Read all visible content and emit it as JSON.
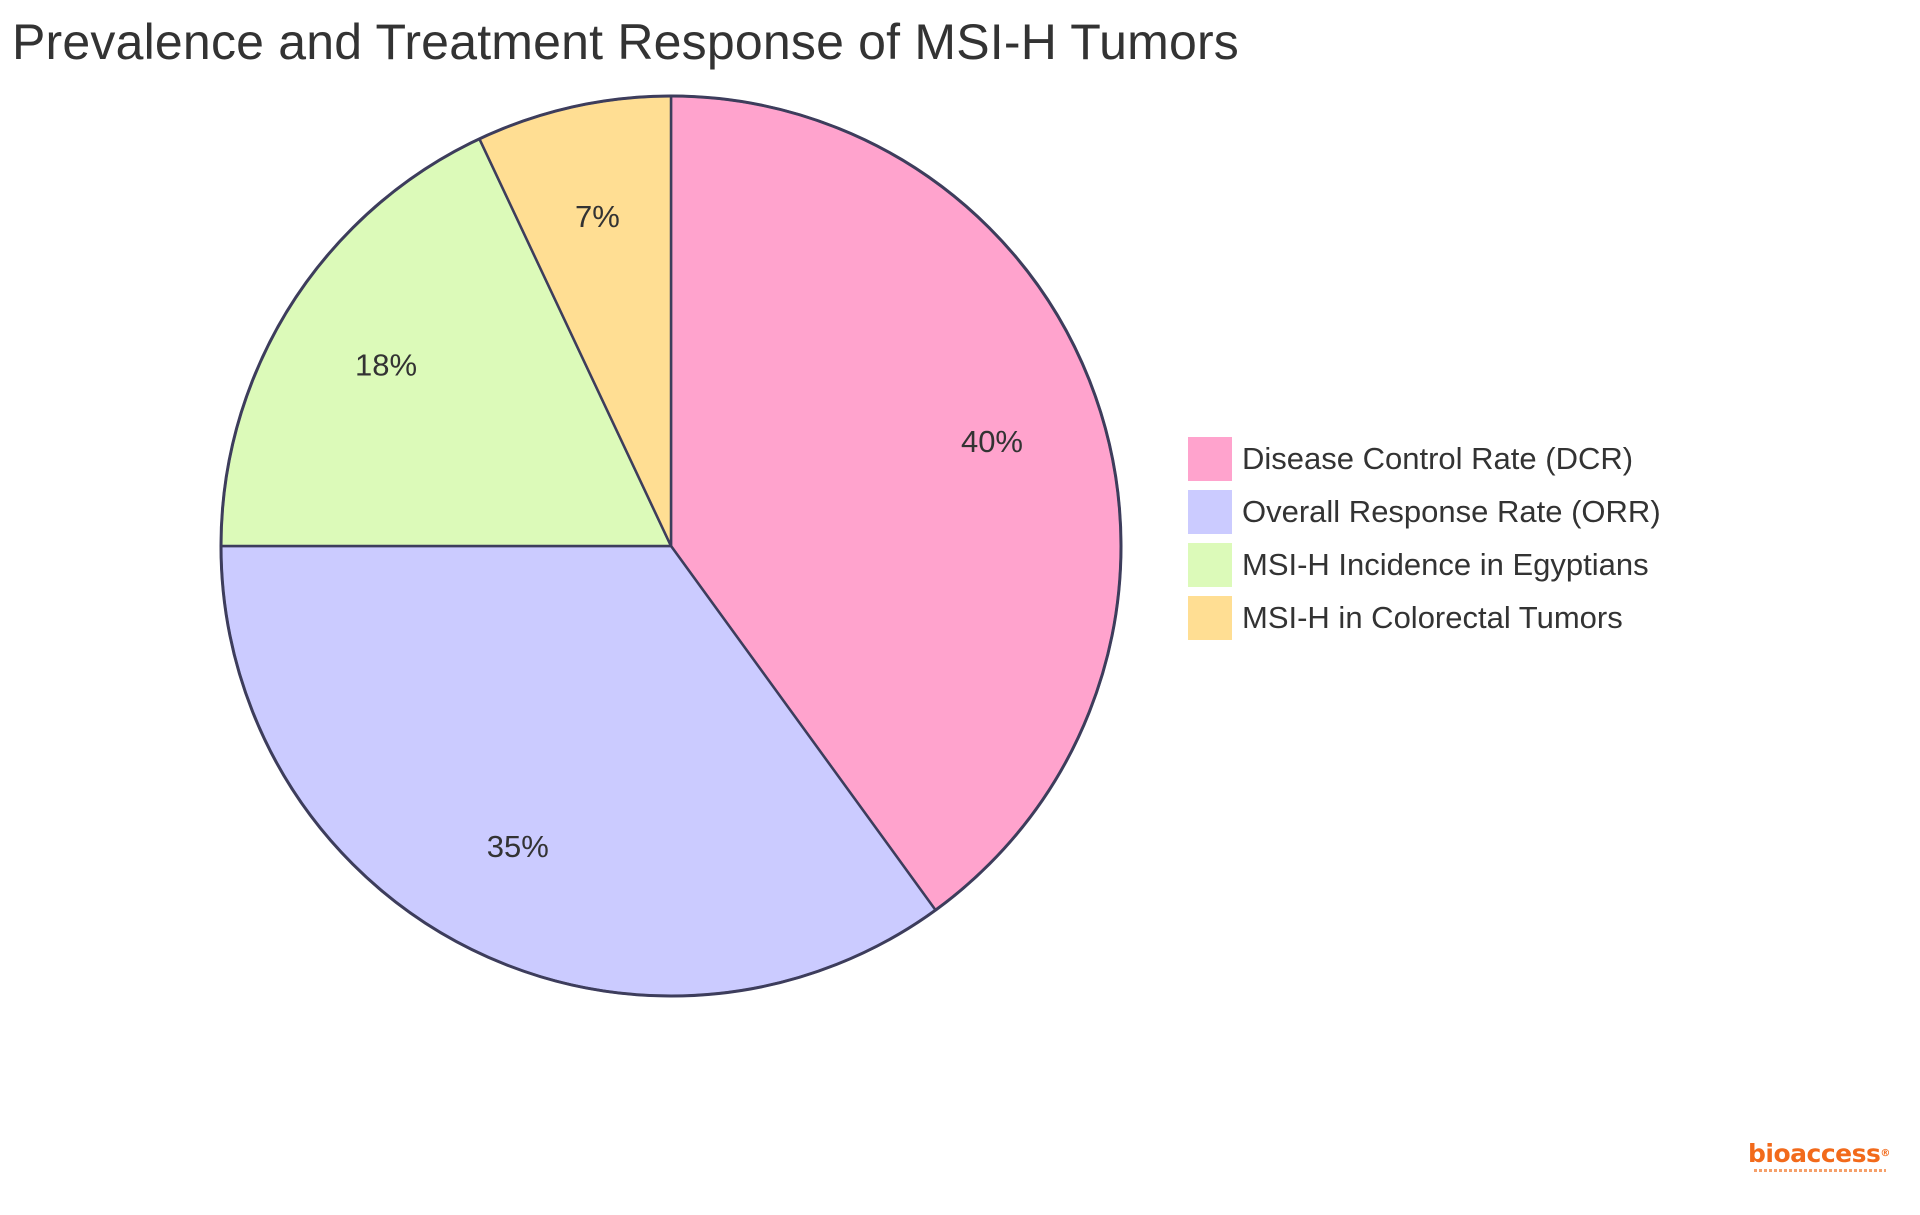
{
  "chart_data": {
    "type": "pie",
    "title": "Prevalence and Treatment Response of MSI-H Tumors",
    "slices": [
      {
        "label": "Disease Control Rate (DCR)",
        "value": 40,
        "display": "40%",
        "color": "#FFA3CD"
      },
      {
        "label": "Overall Response Rate (ORR)",
        "value": 35,
        "display": "35%",
        "color": "#CBCBFF"
      },
      {
        "label": "MSI-H Incidence in Egyptians",
        "value": 18,
        "display": "18%",
        "color": "#DCFAB9"
      },
      {
        "label": "MSI-H in Colorectal Tumors",
        "value": 7,
        "display": "7%",
        "color": "#FFDE93"
      }
    ],
    "start_angle": "12 o'clock",
    "direction": "clockwise",
    "stroke_color": "#3D3D5C",
    "legend_position": "right"
  },
  "brand": {
    "name": "bioaccess",
    "reg": "®"
  }
}
